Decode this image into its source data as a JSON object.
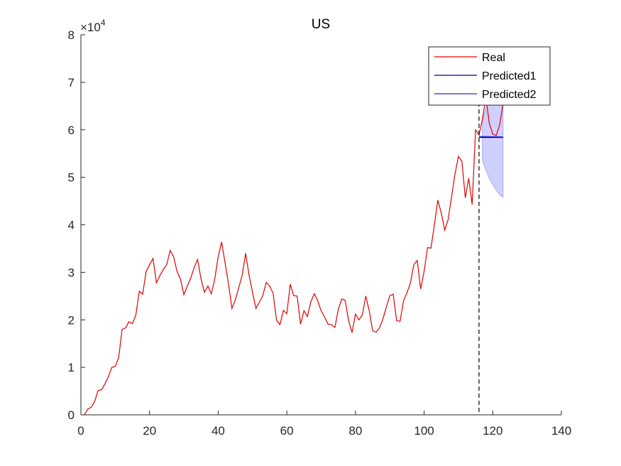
{
  "chart_data": {
    "type": "line",
    "title": "US",
    "xlabel": "",
    "ylabel": "",
    "xlim": [
      0,
      140
    ],
    "ylim": [
      0,
      80000
    ],
    "y_exponent_label": "×10",
    "y_exponent_power": "4",
    "x_ticks": [
      0,
      20,
      40,
      60,
      80,
      100,
      120,
      140
    ],
    "y_ticks": [
      0,
      10000,
      20000,
      30000,
      40000,
      50000,
      60000,
      70000,
      80000
    ],
    "y_tick_labels": [
      "0",
      "1",
      "2",
      "3",
      "4",
      "5",
      "6",
      "7",
      "8"
    ],
    "x_tick_labels": [
      "0",
      "20",
      "40",
      "60",
      "80",
      "100",
      "120",
      "140"
    ],
    "legend_position": "top-right",
    "vline_x": 116,
    "colors": {
      "real": "#e00000",
      "predicted1": "#00008b",
      "predicted2": "#2a2ad8",
      "band": "#c8c8ff",
      "vline": "#000000"
    },
    "series": [
      {
        "name": "Real",
        "x": [
          1,
          2,
          3,
          4,
          5,
          6,
          7,
          8,
          9,
          10,
          11,
          12,
          13,
          14,
          15,
          16,
          17,
          18,
          19,
          20,
          21,
          22,
          23,
          24,
          25,
          26,
          27,
          28,
          29,
          30,
          31,
          32,
          33,
          34,
          35,
          36,
          37,
          38,
          39,
          40,
          41,
          42,
          43,
          44,
          45,
          46,
          47,
          48,
          49,
          50,
          51,
          52,
          53,
          54,
          55,
          56,
          57,
          58,
          59,
          60,
          61,
          62,
          63,
          64,
          65,
          66,
          67,
          68,
          69,
          70,
          71,
          72,
          73,
          74,
          75,
          76,
          77,
          78,
          79,
          80,
          81,
          82,
          83,
          84,
          85,
          86,
          87,
          88,
          89,
          90,
          91,
          92,
          93,
          94,
          95,
          96,
          97,
          98,
          99,
          100,
          101,
          102,
          103,
          104,
          105,
          106,
          107,
          108,
          109,
          110,
          111,
          112,
          113,
          114,
          115,
          116,
          117,
          118,
          119,
          120,
          121,
          122,
          123
        ],
        "values": [
          0,
          1200,
          1600,
          2800,
          5100,
          5300,
          6500,
          8000,
          10000,
          10200,
          12000,
          18000,
          18300,
          19600,
          19200,
          21000,
          26000,
          25400,
          30200,
          31600,
          32900,
          27800,
          29300,
          30600,
          31600,
          34600,
          33300,
          30200,
          28600,
          25300,
          27100,
          28800,
          31000,
          32700,
          28600,
          25800,
          27100,
          25500,
          28600,
          33300,
          36400,
          32000,
          27600,
          22400,
          24200,
          26800,
          29400,
          34000,
          29400,
          25800,
          22400,
          23700,
          25100,
          27900,
          27100,
          25600,
          19900,
          19000,
          22000,
          21300,
          27500,
          25100,
          25000,
          19100,
          21900,
          20700,
          23800,
          25500,
          24000,
          21900,
          20600,
          19100,
          19000,
          18400,
          22200,
          24400,
          24100,
          19800,
          17300,
          21200,
          20000,
          21000,
          25000,
          22000,
          17700,
          17400,
          18300,
          20200,
          22700,
          25100,
          25400,
          19800,
          19700,
          24000,
          25700,
          27700,
          31600,
          32500,
          26500,
          30200,
          35200,
          35100,
          40000,
          45200,
          42500,
          38900,
          41100,
          45900,
          50700,
          54400,
          53400,
          45700,
          49800,
          44300,
          60000,
          58900,
          62300,
          66800,
          61400,
          59100,
          58800,
          61000,
          65500
        ]
      },
      {
        "name": "Predicted1",
        "x": [
          116,
          123
        ],
        "values": [
          58400,
          58400
        ]
      },
      {
        "name": "Predicted2",
        "x": [
          116,
          123
        ],
        "values": [
          58600,
          58500
        ]
      }
    ],
    "band": {
      "x": [
        117,
        118,
        119,
        120,
        121,
        122,
        123
      ],
      "upper": [
        62000,
        64500,
        66500,
        68500,
        70000,
        71500,
        73000
      ],
      "lower": [
        53500,
        51500,
        49800,
        48500,
        47300,
        46400,
        45800
      ]
    }
  }
}
